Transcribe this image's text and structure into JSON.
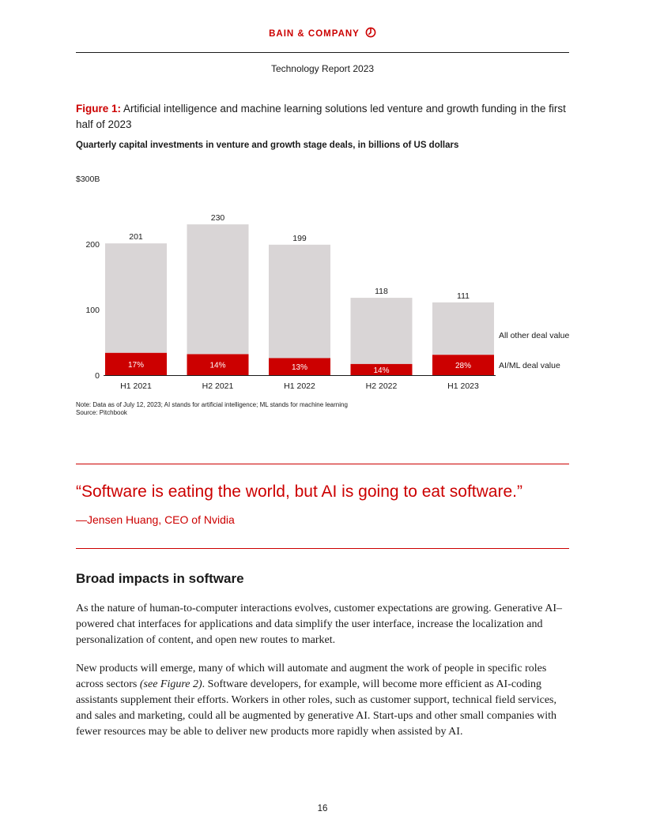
{
  "header": {
    "brand": "BAIN & COMPANY",
    "report_title": "Technology Report 2023"
  },
  "figure": {
    "label": "Figure 1:",
    "title": "Artificial intelligence and machine learning solutions led venture and growth funding in the first half of 2023",
    "subtitle": "Quarterly capital investments in venture and growth stage deals, in billions of US dollars",
    "note": "Note: Data as of July 12, 2023; AI stands for artificial intelligence; ML stands for machine learning",
    "source": "Source: Pitchbook"
  },
  "chart_data": {
    "type": "bar",
    "stacked": true,
    "categories": [
      "H1 2021",
      "H2 2021",
      "H1 2022",
      "H2 2022",
      "H1 2023"
    ],
    "totals": [
      201,
      230,
      199,
      118,
      111
    ],
    "ai_ml_share_labels": [
      "17%",
      "14%",
      "13%",
      "14%",
      "28%"
    ],
    "series": [
      {
        "name": "AI/ML deal value",
        "values": [
          34,
          32,
          26,
          17,
          31
        ],
        "color": "#cc0000"
      },
      {
        "name": "All other deal value",
        "values": [
          167,
          198,
          173,
          101,
          80
        ],
        "color": "#d9d5d6"
      }
    ],
    "y_ticks": [
      "0",
      "100",
      "200",
      "$300B"
    ],
    "ylim": [
      0,
      300
    ],
    "grid": false,
    "legend": "right"
  },
  "quote": {
    "text": "“Software is eating the world, but AI is going to eat software.”",
    "attribution": "—Jensen Huang, CEO of Nvidia"
  },
  "section": {
    "heading": "Broad impacts in software",
    "para1": "As the nature of human-to-computer interactions evolves, customer expectations are growing. Generative AI–powered chat interfaces for applications and data simplify the user interface, increase the localization and personalization of content, and open new routes to market.",
    "para2_before": "New products will emerge, many of which will automate and augment the work of people in specific roles across sectors ",
    "para2_ref": "(see Figure 2)",
    "para2_after": ". Software developers, for example, will become more efficient as AI-coding assistants supplement their efforts. Workers in other roles, such as customer support, technical field services, and sales and marketing, could all be augmented by generative AI. Start-ups and other small companies with fewer resources may be able to deliver new products more rapidly when assisted by AI."
  },
  "footer": {
    "page_number": "16"
  }
}
